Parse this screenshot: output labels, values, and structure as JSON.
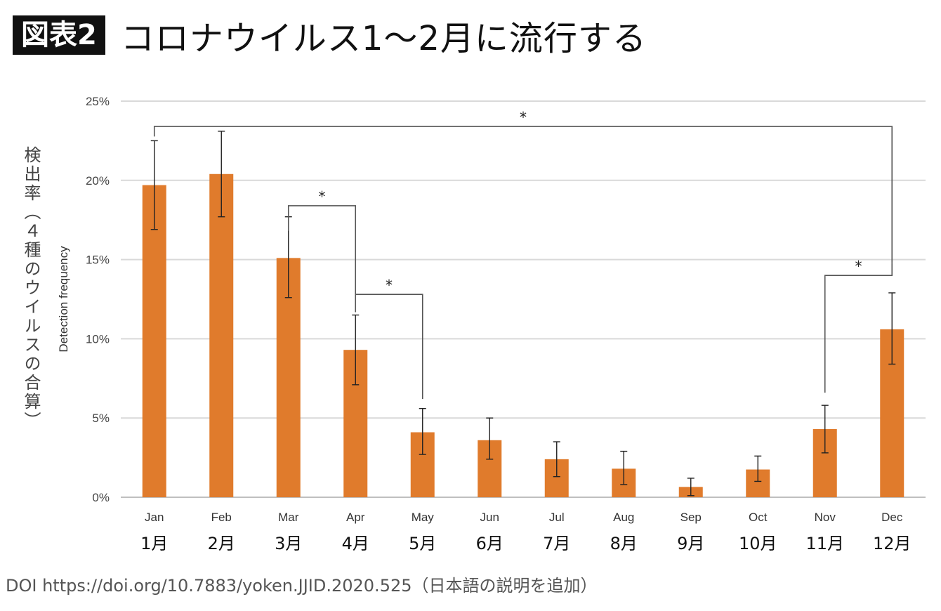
{
  "header": {
    "badge": "図表2",
    "title": "コロナウイルス1〜2月に流行する"
  },
  "y_label_jp": "検出率（４種のウイルスの合算）",
  "source": "DOI https://doi.org/10.7883/yoken.JJID.2020.525（日本語の説明を追加）",
  "colors": {
    "bar": "#e07b2c",
    "grid": "#d9d9d9",
    "bracket": "#555555",
    "error": "#222222"
  },
  "chart_data": {
    "type": "bar",
    "ylabel": "Detection frequency",
    "ylim": [
      0,
      25
    ],
    "yticks": [
      0,
      5,
      10,
      15,
      20,
      25
    ],
    "ytick_labels": [
      "0%",
      "5%",
      "10%",
      "15%",
      "20%",
      "25%"
    ],
    "grid": true,
    "categories": [
      "Jan",
      "Feb",
      "Mar",
      "Apr",
      "May",
      "Jun",
      "Jul",
      "Aug",
      "Sep",
      "Oct",
      "Nov",
      "Dec"
    ],
    "categories_jp": [
      "1月",
      "2月",
      "3月",
      "4月",
      "5月",
      "6月",
      "7月",
      "8月",
      "9月",
      "10月",
      "11月",
      "12月"
    ],
    "values": [
      19.7,
      20.4,
      15.1,
      9.3,
      4.1,
      3.6,
      2.4,
      1.8,
      0.65,
      1.75,
      4.3,
      10.6
    ],
    "error_low": [
      16.9,
      17.7,
      12.6,
      7.1,
      2.7,
      2.4,
      1.3,
      0.8,
      0.1,
      1.0,
      2.8,
      8.4
    ],
    "error_high": [
      22.5,
      23.1,
      17.7,
      11.5,
      5.6,
      5.0,
      3.5,
      2.9,
      1.2,
      2.6,
      5.8,
      12.9
    ],
    "significance": [
      {
        "from": "Jan",
        "to": "Dec",
        "label": "*",
        "level": 23.4
      },
      {
        "from": "Mar",
        "to": "Apr",
        "label": "*",
        "level": 18.4
      },
      {
        "from": "Apr",
        "to": "May",
        "label": "*",
        "level": 12.8
      },
      {
        "from": "Nov",
        "to": "Dec",
        "label": "*",
        "level": 14.0
      }
    ]
  }
}
